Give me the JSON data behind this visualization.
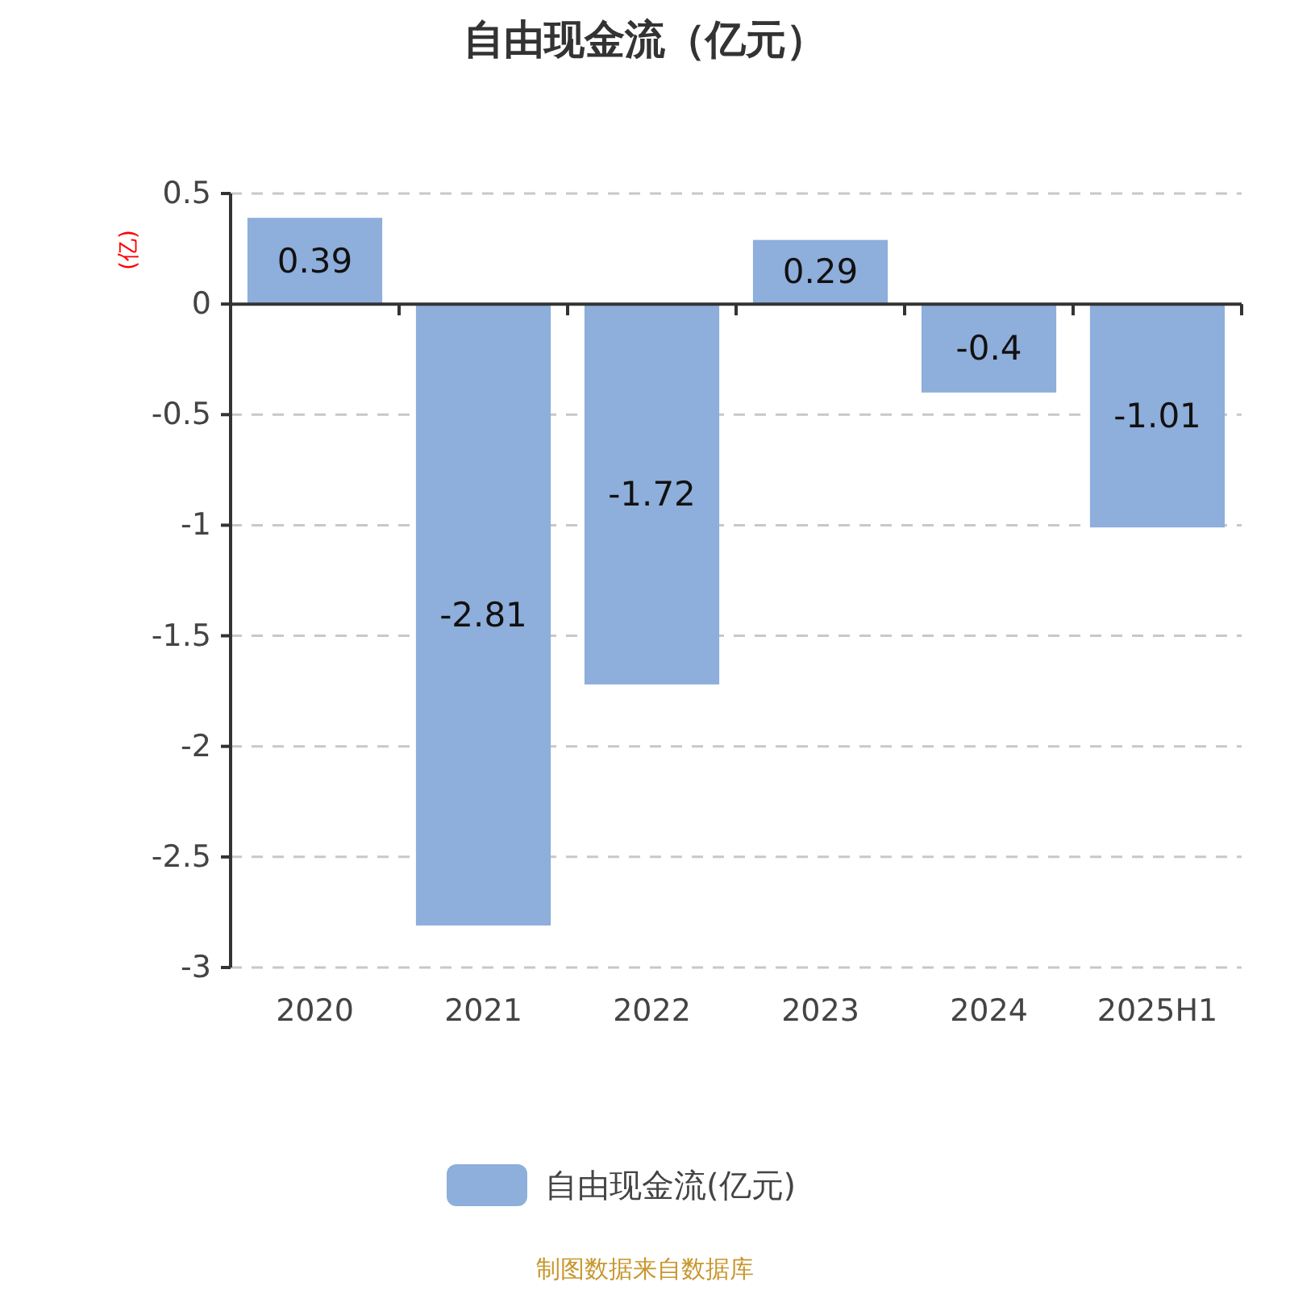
{
  "chart_data": {
    "type": "bar",
    "title": "自由现金流（亿元）",
    "ylabel": "(亿)",
    "categories": [
      "2020",
      "2021",
      "2022",
      "2023",
      "2024",
      "2025H1"
    ],
    "series": [
      {
        "name": "自由现金流(亿元)",
        "color": "#8eaedb",
        "values": [
          0.39,
          -2.81,
          -1.72,
          0.29,
          -0.4,
          -1.01
        ]
      }
    ],
    "ylim": [
      -3,
      0.5
    ],
    "yticks": [
      0.5,
      0,
      -0.5,
      -1,
      -1.5,
      -2,
      -2.5,
      -3
    ],
    "grid": "y",
    "legend": "bottom",
    "data_labels": true,
    "annotations": [
      "制图数据来自数据库"
    ]
  }
}
